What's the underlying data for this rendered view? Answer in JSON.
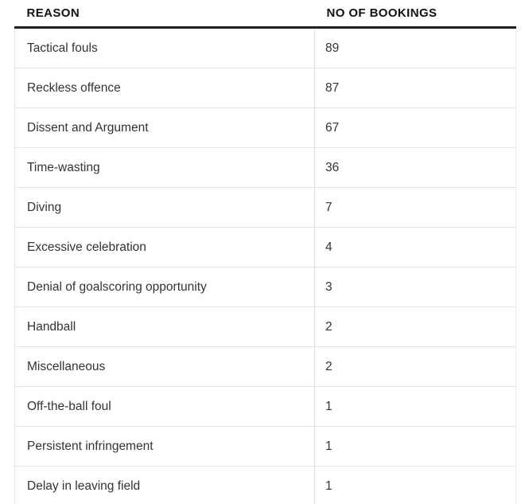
{
  "chart_data": {
    "type": "table",
    "columns": [
      "REASON",
      "NO OF BOOKINGS"
    ],
    "rows": [
      [
        "Tactical fouls",
        89
      ],
      [
        "Reckless offence",
        87
      ],
      [
        "Dissent and Argument",
        67
      ],
      [
        "Time-wasting",
        36
      ],
      [
        "Diving",
        7
      ],
      [
        "Excessive celebration",
        4
      ],
      [
        "Denial of goalscoring opportunity",
        3
      ],
      [
        "Handball",
        2
      ],
      [
        "Miscellaneous",
        2
      ],
      [
        "Off-the-ball foul",
        1
      ],
      [
        "Persistent infringement",
        1
      ],
      [
        "Delay in leaving field",
        1
      ]
    ],
    "layout": {
      "legend": "none",
      "grid": "horizontal-row-separators"
    }
  },
  "colors": {
    "header_text": "#121212",
    "body_text": "#333333",
    "header_rule": "#212121",
    "grid_line": "#e2e2e2",
    "background": "#ffffff"
  }
}
